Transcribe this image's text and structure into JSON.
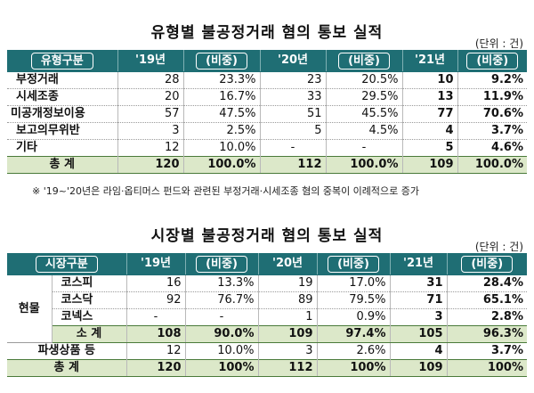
{
  "table1": {
    "title": "유형별 불공정거래 혐의 통보 실적",
    "unit": "(단위 : 건)",
    "headers": [
      "유형구분",
      "'19년",
      "(비중)",
      "'20년",
      "(비중)",
      "'21년",
      "(비중)"
    ],
    "rows": [
      {
        "label": "부정거래",
        "c19": "28",
        "p19": "23.3%",
        "c20": "23",
        "p20": "20.5%",
        "c21": "10",
        "p21": "9.2%"
      },
      {
        "label": "시세조종",
        "c19": "20",
        "p19": "16.7%",
        "c20": "33",
        "p20": "29.5%",
        "c21": "13",
        "p21": "11.9%"
      },
      {
        "label": "미공개정보이용",
        "c19": "57",
        "p19": "47.5%",
        "c20": "51",
        "p20": "45.5%",
        "c21": "77",
        "p21": "70.6%"
      },
      {
        "label": "보고의무위반",
        "c19": "3",
        "p19": "2.5%",
        "c20": "5",
        "p20": "4.5%",
        "c21": "4",
        "p21": "3.7%"
      },
      {
        "label": "기타",
        "c19": "12",
        "p19": "10.0%",
        "c20": "-",
        "p20": "-",
        "c21": "5",
        "p21": "4.6%"
      }
    ],
    "total": {
      "label": "총 계",
      "c19": "120",
      "p19": "100.0%",
      "c20": "112",
      "p20": "100.0%",
      "c21": "109",
      "p21": "100.0%"
    },
    "note": "※ '19~'20년은 라임·옵티머스 펀드와 관련된 부정거래·시세조종 혐의 중복이 이례적으로 증가"
  },
  "table2": {
    "title": "시장별 불공정거래 혐의 통보 실적",
    "unit": "(단위 : 건)",
    "headers": [
      "시장구분",
      "'19년",
      "(비중)",
      "'20년",
      "(비중)",
      "'21년",
      "(비중)"
    ],
    "group_label": "현물",
    "rows": [
      {
        "label": "코스피",
        "c19": "16",
        "p19": "13.3%",
        "c20": "19",
        "p20": "17.0%",
        "c21": "31",
        "p21": "28.4%"
      },
      {
        "label": "코스닥",
        "c19": "92",
        "p19": "76.7%",
        "c20": "89",
        "p20": "79.5%",
        "c21": "71",
        "p21": "65.1%"
      },
      {
        "label": "코넥스",
        "c19": "-",
        "p19": "-",
        "c20": "1",
        "p20": "0.9%",
        "c21": "3",
        "p21": "2.8%"
      }
    ],
    "subtotal": {
      "label": "소 계",
      "c19": "108",
      "p19": "90.0%",
      "c20": "109",
      "p20": "97.4%",
      "c21": "105",
      "p21": "96.3%"
    },
    "derivatives": {
      "label": "파생상품 등",
      "c19": "12",
      "p19": "10.0%",
      "c20": "3",
      "p20": "2.6%",
      "c21": "4",
      "p21": "3.7%"
    },
    "total": {
      "label": "총 계",
      "c19": "120",
      "p19": "100%",
      "c20": "112",
      "p20": "100%",
      "c21": "109",
      "p21": "100%"
    }
  }
}
